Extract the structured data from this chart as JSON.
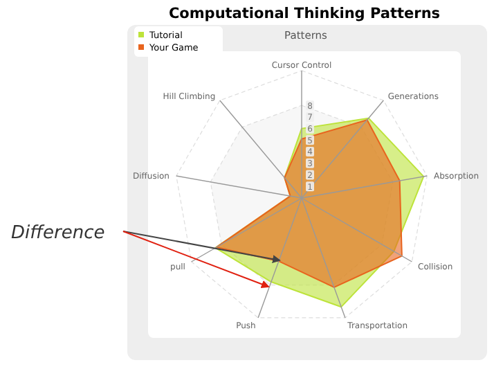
{
  "chart_data": {
    "type": "radar",
    "title": "Computational Thinking Patterns",
    "subtitle": "Patterns",
    "categories": [
      "Cursor Control",
      "Generations",
      "Absorption",
      "Collision",
      "Transportation",
      "Push",
      "pull",
      "Diffusion",
      "Hill Climbing"
    ],
    "series": [
      {
        "name": "Tutorial",
        "color": "#bde33a",
        "values": [
          6,
          9,
          10.7,
          9.2,
          10,
          7.7,
          8.6,
          1,
          2.3
        ]
      },
      {
        "name": "Your Game",
        "color": "#e8641e",
        "values": [
          5.1,
          8.8,
          8.6,
          10,
          8.2,
          5.8,
          8.5,
          1,
          2.3
        ]
      }
    ],
    "ylim": [
      0,
      11
    ],
    "yticks": [
      1,
      2,
      3,
      4,
      5,
      6,
      7,
      8
    ],
    "grid": true,
    "legend": "top left",
    "annotations": [
      "Difference"
    ]
  }
}
